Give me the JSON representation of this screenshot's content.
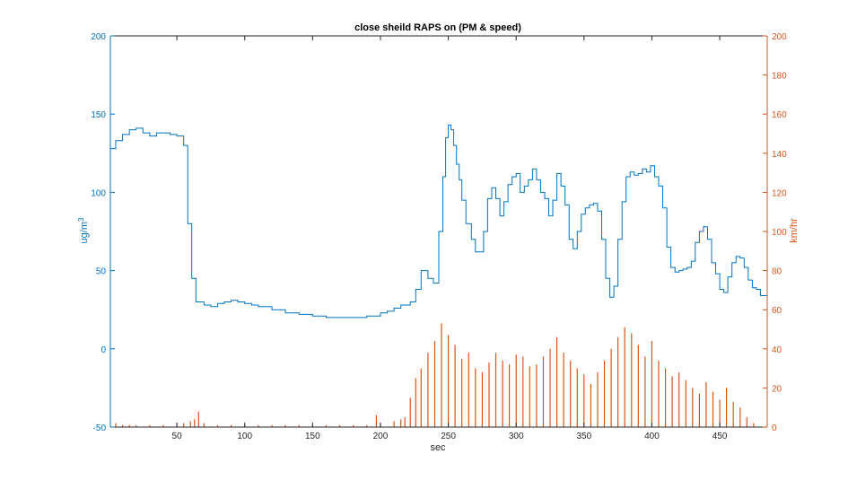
{
  "chart_data": {
    "type": "line",
    "title": "close sheild RAPS on (PM & speed)",
    "xlabel": "sec",
    "xlim": [
      1,
      485
    ],
    "xticks": [
      50,
      100,
      150,
      200,
      250,
      300,
      350,
      400,
      450
    ],
    "grid": false,
    "colors": {
      "left": "#0072BD",
      "right": "#D95319",
      "axis": "#262626"
    },
    "y_left": {
      "label": "ug/m",
      "label_sup": "3",
      "ylim": [
        -50,
        200
      ],
      "ticks": [
        -50,
        0,
        50,
        100,
        150,
        200
      ]
    },
    "y_right": {
      "label": "km/hr",
      "ylim": [
        0,
        200
      ],
      "ticks": [
        0,
        20,
        40,
        60,
        80,
        100,
        120,
        140,
        160,
        180,
        200
      ]
    },
    "series": [
      {
        "axis": "left",
        "style": "stairs",
        "x": [
          1,
          5,
          10,
          15,
          20,
          25,
          30,
          35,
          40,
          45,
          50,
          55,
          58,
          61,
          64,
          70,
          75,
          80,
          85,
          90,
          95,
          100,
          105,
          110,
          120,
          130,
          140,
          150,
          160,
          170,
          180,
          190,
          200,
          205,
          210,
          215,
          222,
          226,
          230,
          235,
          239,
          243,
          246,
          248,
          250,
          252,
          254,
          256,
          258,
          260,
          263,
          267,
          270,
          273,
          276,
          279,
          282,
          285,
          288,
          291,
          294,
          297,
          300,
          303,
          306,
          309,
          312,
          315,
          318,
          321,
          324,
          327,
          330,
          333,
          336,
          339,
          342,
          345,
          348,
          351,
          354,
          357,
          360,
          363,
          366,
          369,
          372,
          375,
          378,
          381,
          384,
          387,
          390,
          393,
          396,
          399,
          402,
          405,
          408,
          411,
          414,
          417,
          420,
          423,
          426,
          429,
          432,
          435,
          438,
          441,
          444,
          447,
          450,
          453,
          456,
          459,
          462,
          465,
          468,
          471,
          474,
          477,
          480,
          485
        ],
        "y": [
          128,
          133,
          137,
          140,
          141,
          138,
          136,
          138,
          138,
          137,
          136,
          130,
          80,
          45,
          30,
          28,
          27,
          29,
          30,
          31,
          30,
          29,
          28,
          27,
          25,
          23,
          22,
          21,
          20,
          20,
          20,
          21,
          23,
          24,
          26,
          28,
          30,
          38,
          50,
          45,
          42,
          75,
          110,
          135,
          143,
          140,
          130,
          118,
          108,
          95,
          80,
          70,
          62,
          62,
          75,
          96,
          103,
          96,
          85,
          94,
          105,
          110,
          112,
          100,
          104,
          108,
          115,
          108,
          100,
          96,
          85,
          95,
          112,
          104,
          92,
          70,
          64,
          75,
          86,
          90,
          92,
          93,
          88,
          70,
          45,
          33,
          40,
          70,
          94,
          110,
          113,
          111,
          112,
          115,
          113,
          117,
          110,
          104,
          90,
          65,
          52,
          49,
          50,
          51,
          52,
          56,
          68,
          75,
          78,
          70,
          55,
          48,
          38,
          36,
          46,
          55,
          59,
          58,
          52,
          44,
          39,
          38,
          34,
          30
        ]
      },
      {
        "axis": "right",
        "style": "spikes",
        "x": [
          5,
          10,
          15,
          20,
          30,
          40,
          50,
          55,
          60,
          63,
          66,
          70,
          80,
          90,
          100,
          110,
          120,
          130,
          140,
          150,
          160,
          170,
          180,
          190,
          197,
          200,
          210,
          215,
          218,
          222,
          226,
          230,
          235,
          240,
          245,
          250,
          255,
          260,
          265,
          270,
          275,
          280,
          285,
          290,
          295,
          300,
          305,
          310,
          315,
          320,
          325,
          330,
          335,
          340,
          345,
          350,
          355,
          360,
          365,
          370,
          375,
          380,
          385,
          390,
          395,
          400,
          405,
          410,
          415,
          420,
          425,
          430,
          435,
          440,
          445,
          450,
          455,
          460,
          465,
          470,
          475
        ],
        "y": [
          2,
          1,
          1,
          1,
          1,
          1,
          2,
          2,
          3,
          4,
          8,
          2,
          1,
          1,
          1,
          1,
          1,
          1,
          1,
          1,
          1,
          1,
          1,
          1,
          6,
          2,
          3,
          4,
          5,
          15,
          25,
          30,
          38,
          44,
          53,
          47,
          42,
          35,
          38,
          30,
          28,
          33,
          38,
          34,
          32,
          37,
          36,
          31,
          32,
          36,
          40,
          46,
          38,
          34,
          30,
          27,
          22,
          28,
          34,
          40,
          46,
          51,
          48,
          42,
          36,
          44,
          34,
          30,
          26,
          28,
          24,
          20,
          17,
          23,
          18,
          14,
          20,
          13,
          10,
          5,
          2
        ]
      }
    ]
  }
}
